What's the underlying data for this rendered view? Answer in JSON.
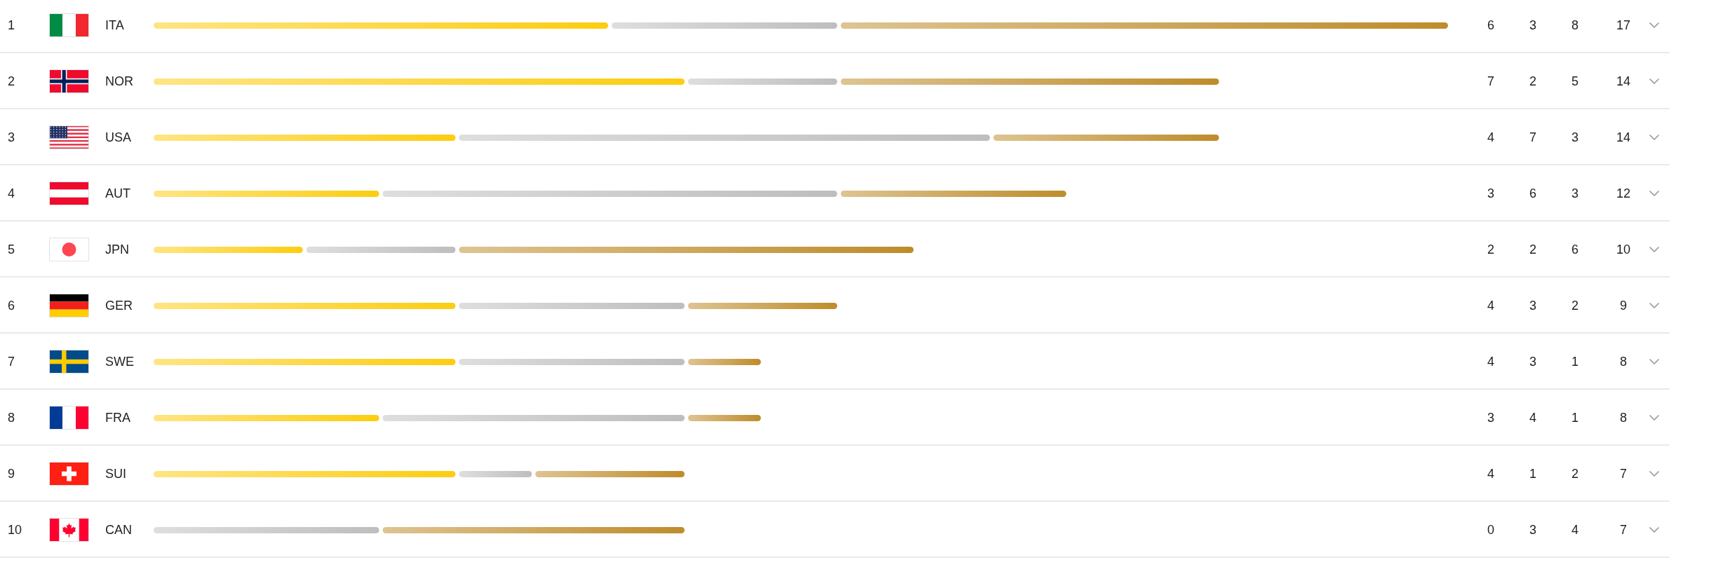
{
  "chart_data": {
    "type": "bar",
    "orientation": "horizontal",
    "stacked": true,
    "categories": [
      "ITA",
      "NOR",
      "USA",
      "AUT",
      "JPN",
      "GER",
      "SWE",
      "FRA",
      "SUI",
      "CAN"
    ],
    "series": [
      {
        "color": "#fdd94a",
        "values": [
          6,
          7,
          4,
          3,
          2,
          4,
          4,
          3,
          4,
          0
        ]
      },
      {
        "color": "#cecece",
        "values": [
          3,
          2,
          7,
          6,
          2,
          3,
          3,
          4,
          1,
          3
        ]
      },
      {
        "color": "#cea85e",
        "values": [
          8,
          5,
          3,
          3,
          6,
          2,
          1,
          1,
          2,
          4
        ]
      }
    ],
    "data_labels": true,
    "annotations": [
      "1",
      "2",
      "3",
      "4",
      "5",
      "6",
      "7",
      "8",
      "9",
      "10",
      "17",
      "14",
      "14",
      "12",
      "10",
      "9",
      "8",
      "8",
      "7",
      "7"
    ]
  }
}
